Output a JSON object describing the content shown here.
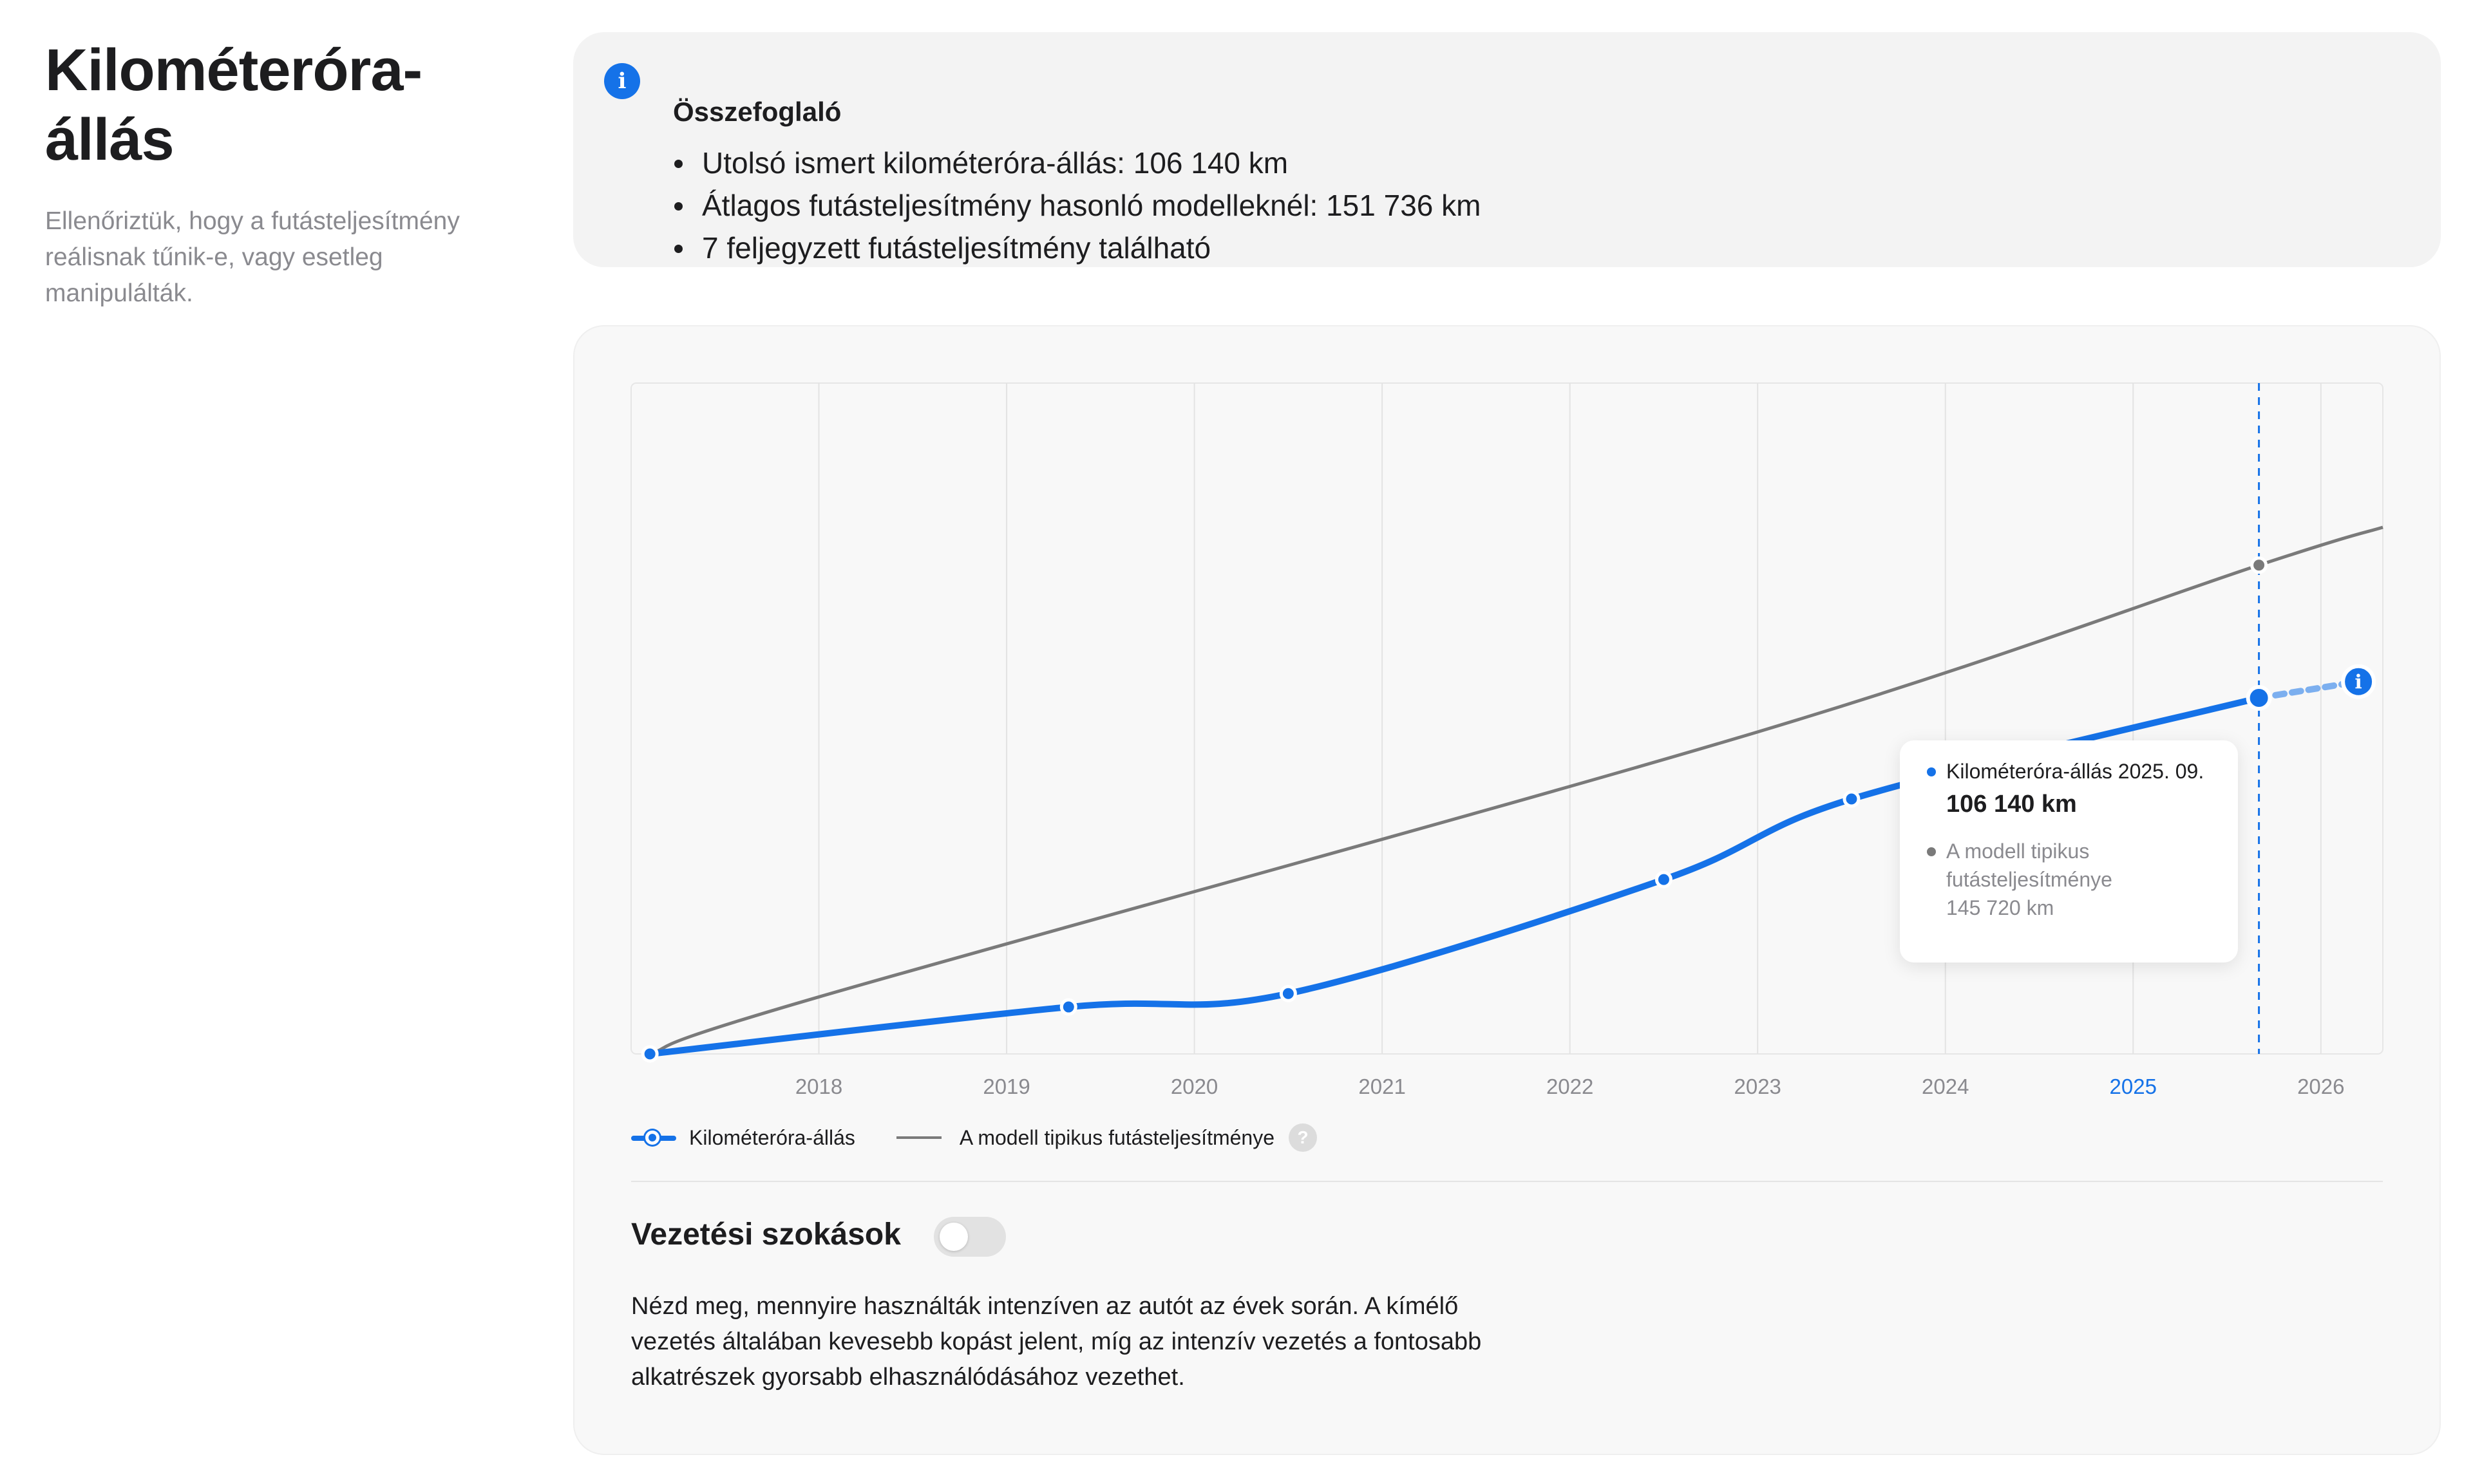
{
  "header": {
    "title": "Kilométeróra-állás",
    "subtitle": "Ellenőriztük, hogy a futásteljesítmény reálisnak tűnik-e, vagy esetleg manipulálták."
  },
  "summary": {
    "icon": "info-icon",
    "title": "Összefoglaló",
    "items": [
      "Utolsó ismert kilométeróra-állás: 106 140 km",
      "Átlagos futásteljesítmény hasonló modelleknél: 151 736 km",
      "7 feljegyzett futásteljesítmény található"
    ]
  },
  "chart_data": {
    "type": "line",
    "x_ticks": [
      "2018",
      "2019",
      "2020",
      "2021",
      "2022",
      "2023",
      "2024",
      "2025",
      "2026"
    ],
    "highlighted_tick": "2025",
    "series": [
      {
        "name": "Kilométeróra-állás",
        "color": "#1572e8",
        "points": [
          {
            "x": 2017.1,
            "y": 0
          },
          {
            "x": 2019.33,
            "y": 14000
          },
          {
            "x": 2020.5,
            "y": 18000
          },
          {
            "x": 2022.5,
            "y": 52000
          },
          {
            "x": 2023.5,
            "y": 76000
          },
          {
            "x": 2025.67,
            "y": 106140
          }
        ],
        "projected_point": {
          "x": 2026.2,
          "y": 111000
        }
      },
      {
        "name": "A modell tipikus futásteljesítménye",
        "color": "#7a7a7a",
        "points": [
          {
            "x": 2017.1,
            "y": 0
          },
          {
            "x": 2018.0,
            "y": 17000
          },
          {
            "x": 2023.0,
            "y": 96000
          },
          {
            "x": 2025.67,
            "y": 145720
          },
          {
            "x": 2026.33,
            "y": 157000
          }
        ]
      }
    ],
    "ylim": [
      0,
      200000
    ],
    "xlim": [
      2017.0,
      2026.33
    ],
    "grid": true,
    "marker_x": 2025.67,
    "legend": "bottom-left"
  },
  "tooltip": {
    "series1_label": "Kilométeróra-állás 2025. 09.",
    "series1_value": "106 140 km",
    "series2_label": "A modell tipikus futásteljesítménye",
    "series2_value": "145 720 km"
  },
  "legend": {
    "series1": "Kilométeróra-állás",
    "series2": "A modell tipikus futásteljesítménye",
    "help": "?"
  },
  "habits": {
    "title": "Vezetési szokások",
    "toggle_on": false,
    "text": "Nézd meg, mennyire használták intenzíven az autót az évek során. A kímélő vezetés általában kevesebb kopást jelent, míg az intenzív vezetés a fontosabb alkatrészek gyorsabb elhasználódásához vezethet."
  },
  "colors": {
    "accent": "#1572e8",
    "gray_line": "#7a7a7a",
    "card_bg": "#f3f3f3"
  }
}
